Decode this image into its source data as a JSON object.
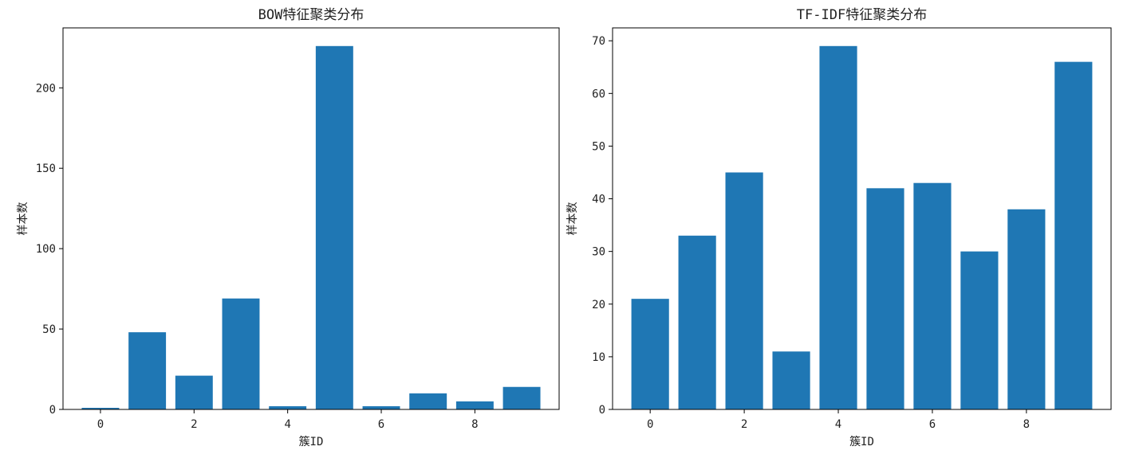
{
  "chart_data": [
    {
      "type": "bar",
      "title": "BOW特征聚类分布",
      "xlabel": "簇ID",
      "ylabel": "样本数",
      "categories": [
        0,
        1,
        2,
        3,
        4,
        5,
        6,
        7,
        8,
        9
      ],
      "values": [
        1,
        48,
        21,
        69,
        2,
        226,
        2,
        10,
        5,
        14
      ],
      "xlim": [
        -0.8,
        9.8
      ],
      "ylim": [
        0,
        237.3
      ],
      "xticks": [
        0,
        2,
        4,
        6,
        8
      ],
      "yticks": [
        0,
        50,
        100,
        150,
        200
      ],
      "color": "#1f77b4",
      "grid": false,
      "legend": "none"
    },
    {
      "type": "bar",
      "title": "TF-IDF特征聚类分布",
      "xlabel": "簇ID",
      "ylabel": "样本数",
      "categories": [
        0,
        1,
        2,
        3,
        4,
        5,
        6,
        7,
        8,
        9
      ],
      "values": [
        21,
        33,
        45,
        11,
        69,
        42,
        43,
        30,
        38,
        66
      ],
      "xlim": [
        -0.8,
        9.8
      ],
      "ylim": [
        0,
        72.45
      ],
      "xticks": [
        0,
        2,
        4,
        6,
        8
      ],
      "yticks": [
        0,
        10,
        20,
        30,
        40,
        50,
        60,
        70
      ],
      "color": "#1f77b4",
      "grid": false,
      "legend": "none"
    }
  ]
}
